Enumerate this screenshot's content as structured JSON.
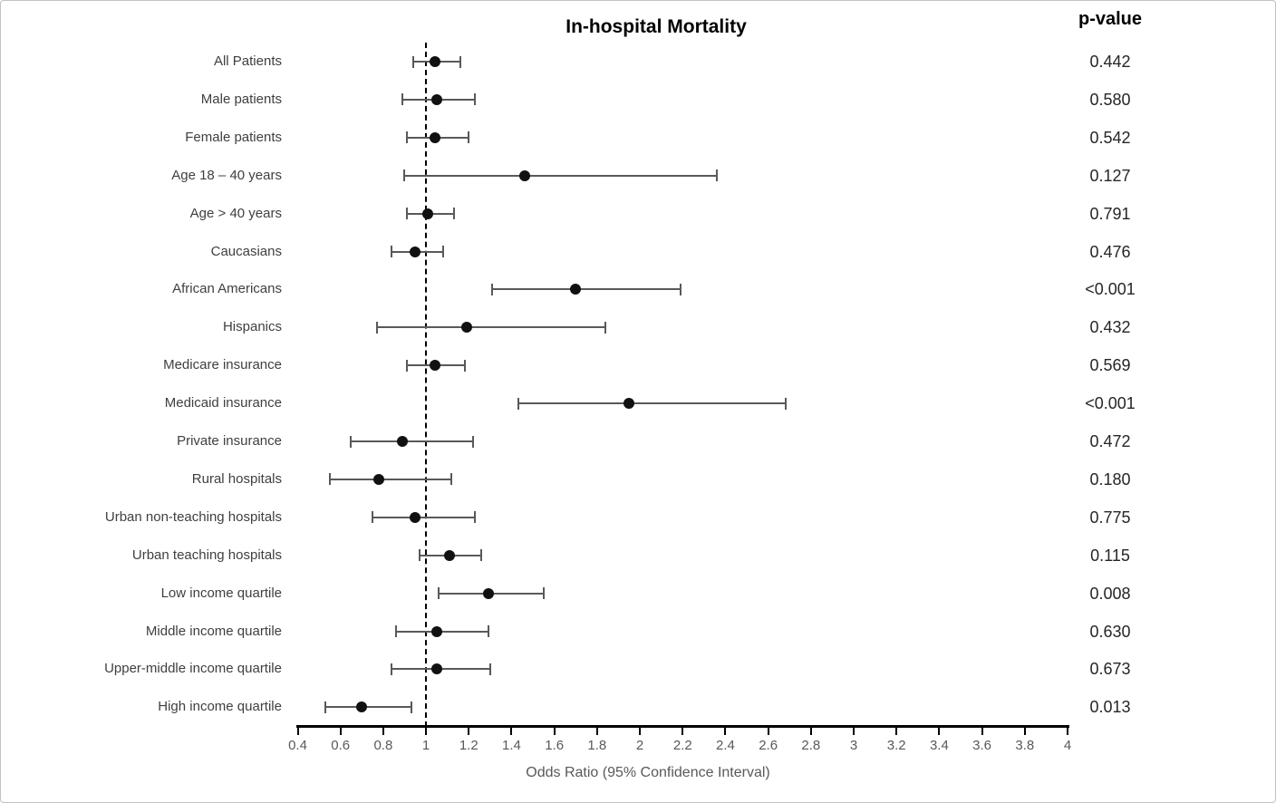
{
  "chart_data": {
    "type": "forest",
    "title": "In-hospital Mortality",
    "pvalue_header": "p-value",
    "xlabel": "Odds Ratio (95% Confidence Interval)",
    "xlim": [
      0.4,
      4
    ],
    "reference_line": 1,
    "grid": false,
    "xticks": [
      0.4,
      0.6,
      0.8,
      1,
      1.2,
      1.4,
      1.6,
      1.8,
      2,
      2.2,
      2.4,
      2.6,
      2.8,
      3,
      3.2,
      3.4,
      3.6,
      3.8,
      4
    ],
    "xtick_labels": [
      "0.4",
      "0.6",
      "0.8",
      "1",
      "1.2",
      "1.4",
      "1.6",
      "1.8",
      "2",
      "2.2",
      "2.4",
      "2.6",
      "2.8",
      "3",
      "3.2",
      "3.4",
      "3.6",
      "3.8",
      "4"
    ],
    "rows": [
      {
        "label": "All Patients",
        "or": 1.04,
        "lo": 0.94,
        "hi": 1.16,
        "p": "0.442"
      },
      {
        "label": "Male patients",
        "or": 1.05,
        "lo": 0.89,
        "hi": 1.23,
        "p": "0.580"
      },
      {
        "label": "Female patients",
        "or": 1.04,
        "lo": 0.91,
        "hi": 1.2,
        "p": "0.542"
      },
      {
        "label": "Age 18 – 40 years",
        "or": 1.46,
        "lo": 0.9,
        "hi": 2.36,
        "p": "0.127"
      },
      {
        "label": "Age > 40 years",
        "or": 1.01,
        "lo": 0.91,
        "hi": 1.13,
        "p": "0.791"
      },
      {
        "label": "Caucasians",
        "or": 0.95,
        "lo": 0.84,
        "hi": 1.08,
        "p": "0.476"
      },
      {
        "label": "African Americans",
        "or": 1.7,
        "lo": 1.31,
        "hi": 2.19,
        "p": "<0.001"
      },
      {
        "label": "Hispanics",
        "or": 1.19,
        "lo": 0.77,
        "hi": 1.84,
        "p": "0.432"
      },
      {
        "label": "Medicare insurance",
        "or": 1.04,
        "lo": 0.91,
        "hi": 1.18,
        "p": "0.569"
      },
      {
        "label": "Medicaid insurance",
        "or": 1.95,
        "lo": 1.43,
        "hi": 2.68,
        "p": "<0.001"
      },
      {
        "label": "Private insurance",
        "or": 0.89,
        "lo": 0.65,
        "hi": 1.22,
        "p": "0.472"
      },
      {
        "label": "Rural hospitals",
        "or": 0.78,
        "lo": 0.55,
        "hi": 1.12,
        "p": "0.180"
      },
      {
        "label": "Urban non-teaching hospitals",
        "or": 0.95,
        "lo": 0.75,
        "hi": 1.23,
        "p": "0.775"
      },
      {
        "label": "Urban teaching hospitals",
        "or": 1.11,
        "lo": 0.97,
        "hi": 1.26,
        "p": "0.115"
      },
      {
        "label": "Low income quartile",
        "or": 1.29,
        "lo": 1.06,
        "hi": 1.55,
        "p": "0.008"
      },
      {
        "label": "Middle income quartile",
        "or": 1.05,
        "lo": 0.86,
        "hi": 1.29,
        "p": "0.630"
      },
      {
        "label": "Upper-middle income quartile",
        "or": 1.05,
        "lo": 0.84,
        "hi": 1.3,
        "p": "0.673"
      },
      {
        "label": "High income quartile",
        "or": 0.7,
        "lo": 0.53,
        "hi": 0.93,
        "p": "0.013"
      }
    ],
    "colors": {
      "marker": "#111111",
      "ci_line": "#595959",
      "axis": "#000000",
      "reference_line": "#000000",
      "label_text": "#3f3f3f",
      "tick_text": "#595959",
      "pvalue_text": "#262626",
      "title_text": "#000000",
      "border": "#c2c2c2"
    }
  }
}
